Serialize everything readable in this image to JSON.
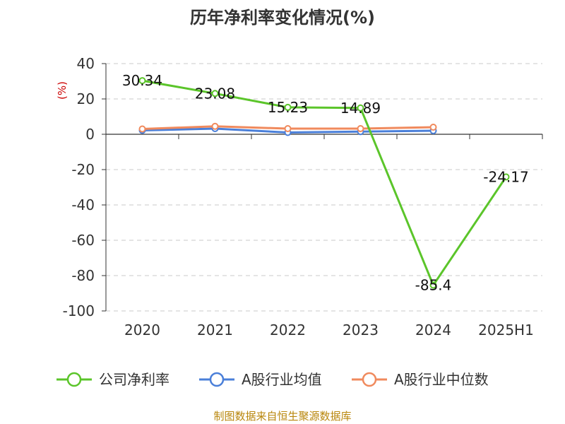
{
  "chart_data": {
    "type": "line",
    "title": "历年净利率变化情况(%)",
    "y_unit": "(%)",
    "categories": [
      "2020",
      "2021",
      "2022",
      "2023",
      "2024",
      "2025H1"
    ],
    "ylim": [
      -100,
      40
    ],
    "yticks": [
      40,
      20,
      0,
      -20,
      -40,
      -60,
      -80,
      -100
    ],
    "grid": true,
    "legend_position": "bottom",
    "series": [
      {
        "name": "公司净利率",
        "color": "#5bc52a",
        "values": [
          30.34,
          23.08,
          15.23,
          14.89,
          -85.4,
          -24.17
        ],
        "labels": [
          "30.34",
          "23.08",
          "15.23",
          "14.89",
          "-85.4",
          "-24.17"
        ]
      },
      {
        "name": "A股行业均值",
        "color": "#4a7fd9",
        "values": [
          2.2,
          3.2,
          1.0,
          1.5,
          2.0,
          null
        ]
      },
      {
        "name": "A股行业中位数",
        "color": "#f08a5d",
        "values": [
          3.0,
          4.5,
          3.2,
          3.2,
          4.0,
          null
        ]
      }
    ],
    "source": "制图数据来自恒生聚源数据库"
  }
}
